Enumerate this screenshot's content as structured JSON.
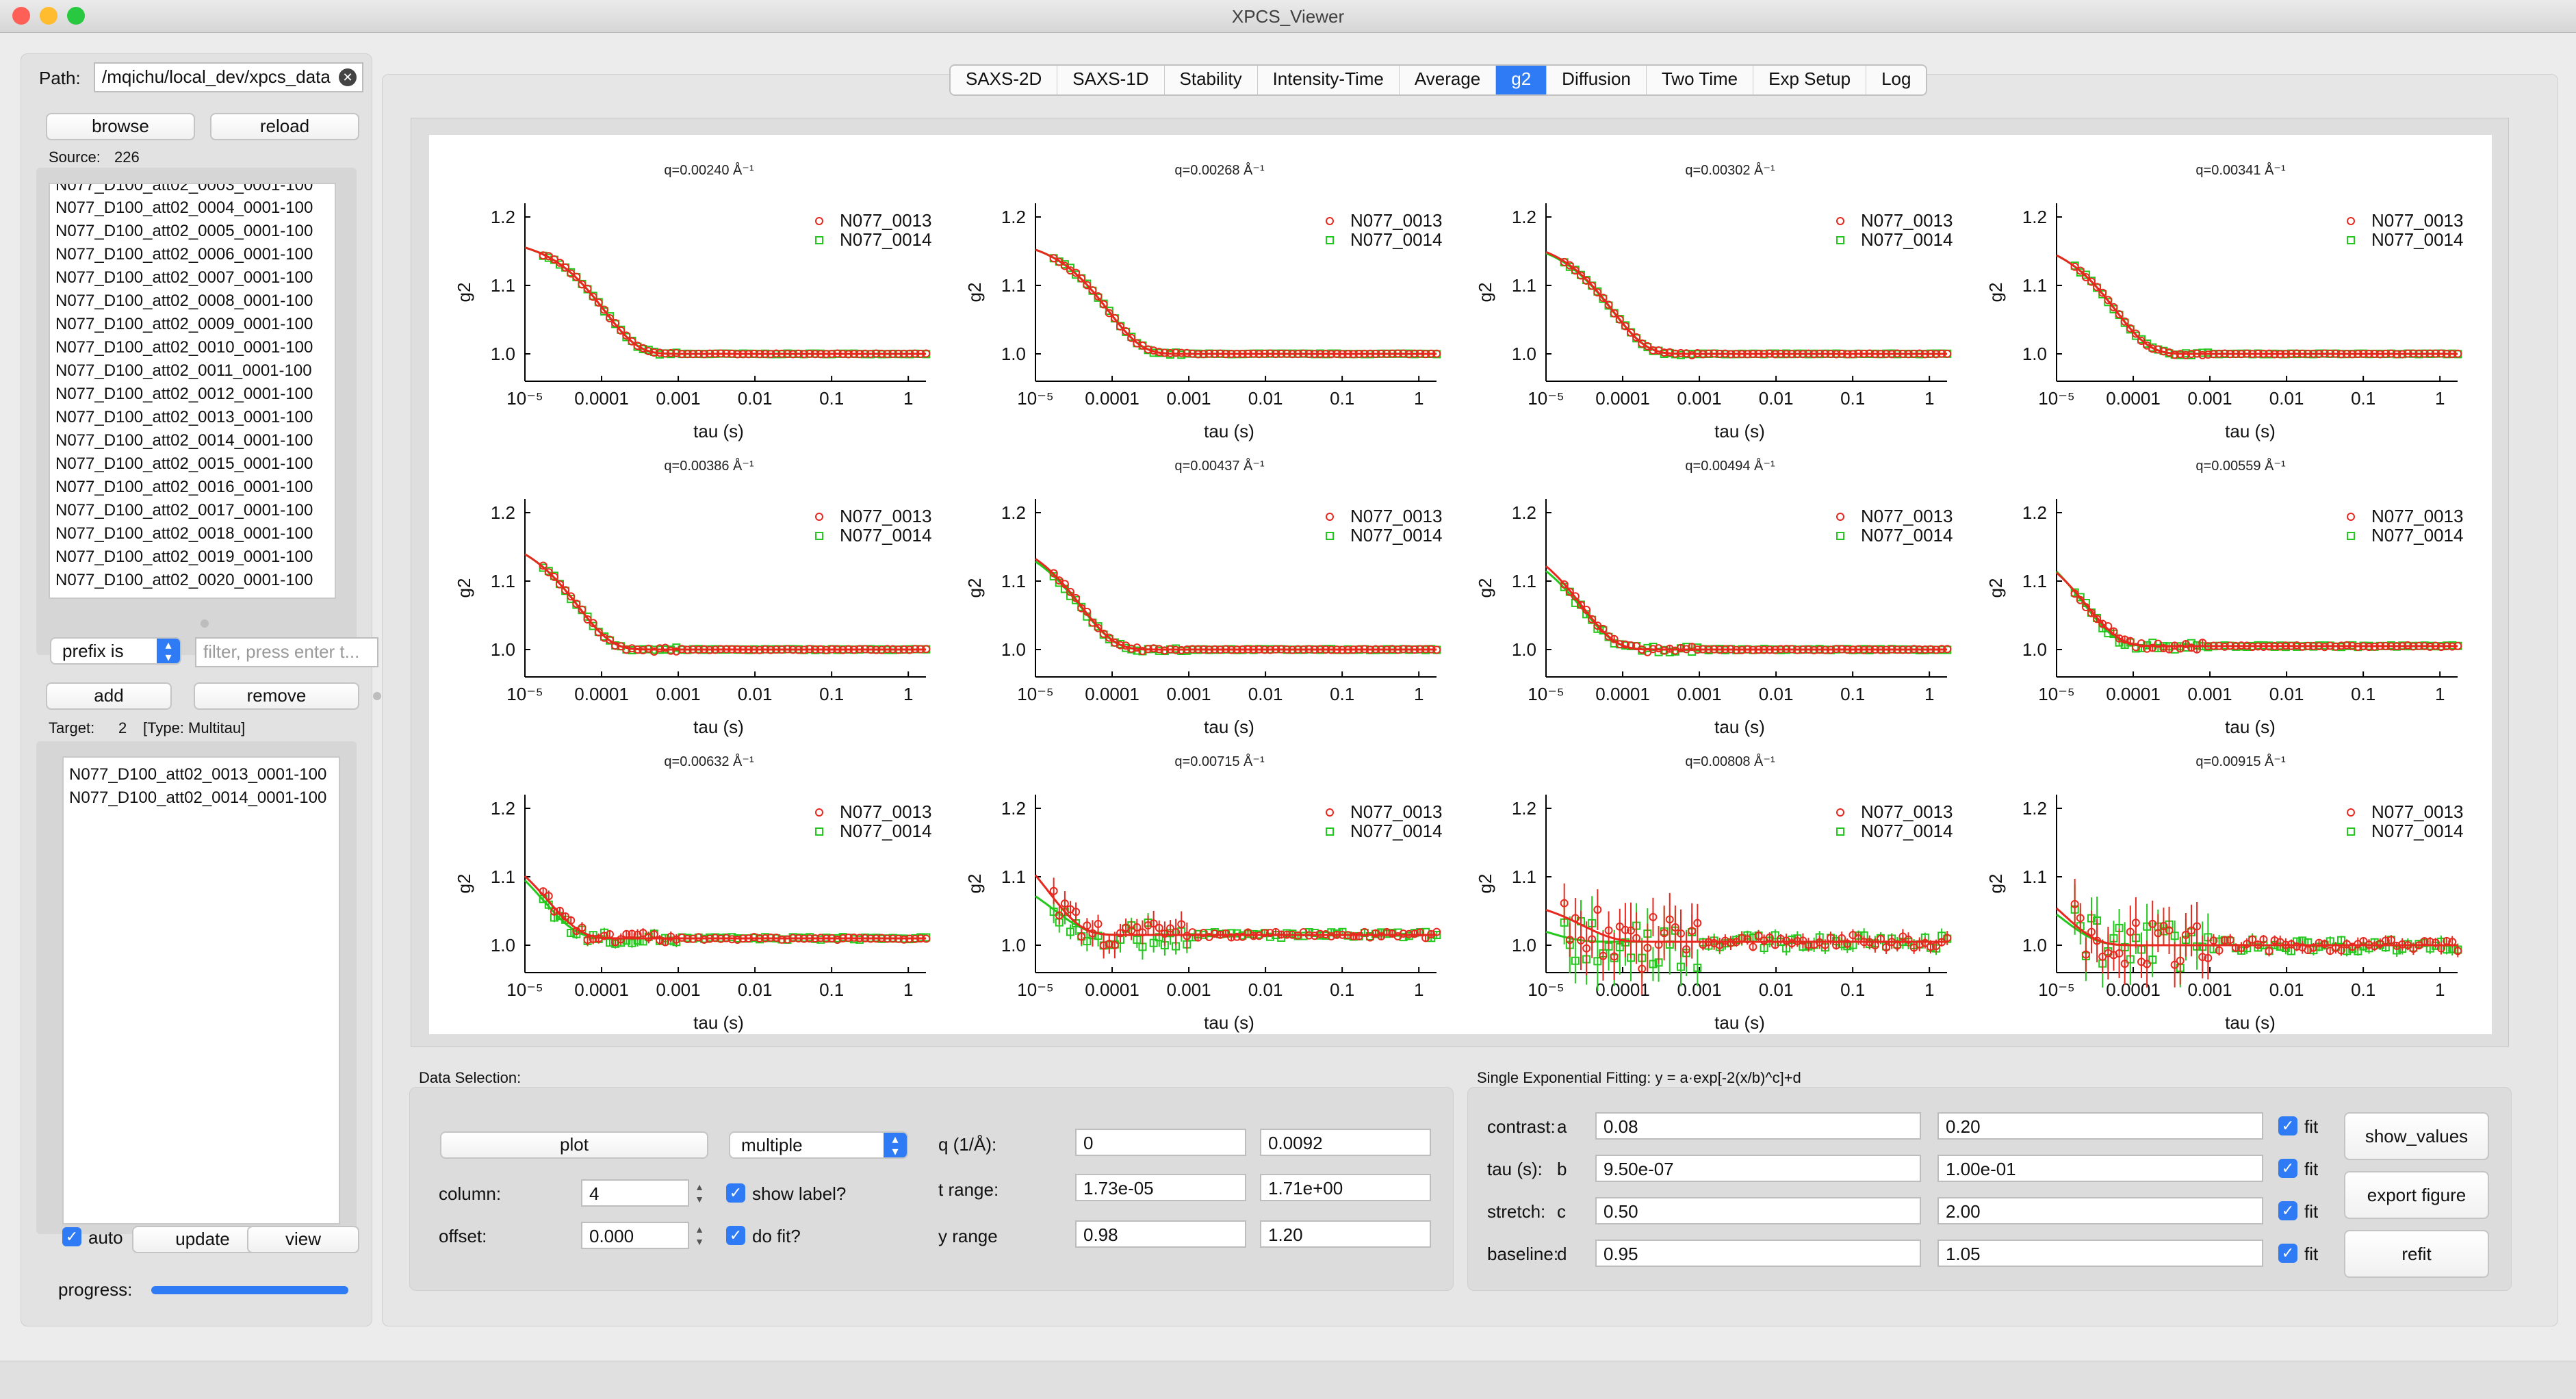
{
  "window": {
    "title": "XPCS_Viewer"
  },
  "left": {
    "path_label": "Path:",
    "path_value": "/mqichu/local_dev/xpcs_data",
    "browse": "browse",
    "reload": "reload",
    "source_label": "Source:",
    "source_count": "226",
    "source_items": [
      "N077_D100_att02_0003_0001-100",
      "N077_D100_att02_0004_0001-100",
      "N077_D100_att02_0005_0001-100",
      "N077_D100_att02_0006_0001-100",
      "N077_D100_att02_0007_0001-100",
      "N077_D100_att02_0008_0001-100",
      "N077_D100_att02_0009_0001-100",
      "N077_D100_att02_0010_0001-100",
      "N077_D100_att02_0011_0001-100",
      "N077_D100_att02_0012_0001-100",
      "N077_D100_att02_0013_0001-100",
      "N077_D100_att02_0014_0001-100",
      "N077_D100_att02_0015_0001-100",
      "N077_D100_att02_0016_0001-100",
      "N077_D100_att02_0017_0001-100",
      "N077_D100_att02_0018_0001-100",
      "N077_D100_att02_0019_0001-100",
      "N077_D100_att02_0020_0001-100"
    ],
    "prefix_option": "prefix is",
    "filter_placeholder": "filter, press enter t...",
    "add": "add",
    "remove": "remove",
    "target_label": "Target:",
    "target_count": "2",
    "target_type": "[Type: Multitau]",
    "target_items": [
      "N077_D100_att02_0013_0001-100",
      "N077_D100_att02_0014_0001-100"
    ],
    "auto_label": "auto",
    "update": "update",
    "view": "view",
    "progress_label": "progress:",
    "progress_value": 1.0
  },
  "tabs": [
    "SAXS-2D",
    "SAXS-1D",
    "Stability",
    "Intensity-Time",
    "Average",
    "g2",
    "Diffusion",
    "Two Time",
    "Exp Setup",
    "Log"
  ],
  "active_tab": "g2",
  "data_selection": {
    "title": "Data Selection:",
    "plot": "plot",
    "mode": "multiple",
    "column_label": "column:",
    "column_value": "4",
    "offset_label": "offset:",
    "offset_value": "0.000",
    "show_label": "show label?",
    "do_fit": "do fit?",
    "q_label": "q (1/Å):",
    "q_min": "0",
    "q_max": "0.0092",
    "t_label": "t range:",
    "t_min": "1.73e-05",
    "t_max": "1.71e+00",
    "y_label": "y range",
    "y_min": "0.98",
    "y_max": "1.20"
  },
  "fitting": {
    "title": "Single Exponential Fitting: y = a·exp[-2(x/b)^c]+d",
    "rows": [
      {
        "label": "contrast:",
        "var": "a",
        "min": "0.08",
        "max": "0.20",
        "fit": "fit"
      },
      {
        "label": "tau (s):",
        "var": "b",
        "min": "9.50e-07",
        "max": "1.00e-01",
        "fit": "fit"
      },
      {
        "label": "stretch:",
        "var": "c",
        "min": "0.50",
        "max": "2.00",
        "fit": "fit"
      },
      {
        "label": "baseline:",
        "var": "d",
        "min": "0.95",
        "max": "1.05",
        "fit": "fit"
      }
    ],
    "show_values": "show_values",
    "export_figure": "export figure",
    "refit": "refit"
  },
  "chart_data": {
    "type": "scatter",
    "x_scale": "log",
    "xlabel": "tau (s)",
    "ylabel": "g2",
    "xlim": [
      1e-05,
      1.7
    ],
    "ylim": [
      0.96,
      1.22
    ],
    "x_tick_labels": [
      "10⁻⁵",
      "0.0001",
      "0.001",
      "0.01",
      "0.1",
      "1"
    ],
    "x_tick_values": [
      1e-05,
      0.0001,
      0.001,
      0.01,
      0.1,
      1
    ],
    "y_tick_labels": [
      "1.0",
      "1.1",
      "1.2"
    ],
    "y_tick_values": [
      1.0,
      1.1,
      1.2
    ],
    "series_names": [
      "N077_0013",
      "N077_0014"
    ],
    "colors": {
      "N077_0013": "#e8281e",
      "N077_0014": "#22c81c"
    },
    "panels": [
      {
        "title": "q=0.00240 Å⁻¹",
        "fits": [
          {
            "a": 0.17,
            "b": 0.00022,
            "c": 1.0,
            "d": 1.0
          },
          {
            "a": 0.17,
            "b": 0.00022,
            "c": 1.0,
            "d": 1.0
          }
        ],
        "noise": 0.002
      },
      {
        "title": "q=0.00268 Å⁻¹",
        "fits": [
          {
            "a": 0.17,
            "b": 0.00018,
            "c": 1.0,
            "d": 1.0
          },
          {
            "a": 0.17,
            "b": 0.00018,
            "c": 1.0,
            "d": 1.0
          }
        ],
        "noise": 0.002
      },
      {
        "title": "q=0.00302 Å⁻¹",
        "fits": [
          {
            "a": 0.17,
            "b": 0.00015,
            "c": 1.0,
            "d": 1.0
          },
          {
            "a": 0.168,
            "b": 0.00015,
            "c": 1.0,
            "d": 1.0
          }
        ],
        "noise": 0.002
      },
      {
        "title": "q=0.00341 Å⁻¹",
        "fits": [
          {
            "a": 0.17,
            "b": 0.00012,
            "c": 1.0,
            "d": 1.0
          },
          {
            "a": 0.17,
            "b": 0.00012,
            "c": 1.0,
            "d": 1.0
          }
        ],
        "noise": 0.002
      },
      {
        "title": "q=0.00386 Å⁻¹",
        "fits": [
          {
            "a": 0.17,
            "b": 0.0001,
            "c": 1.0,
            "d": 1.0
          },
          {
            "a": 0.17,
            "b": 0.0001,
            "c": 1.0,
            "d": 1.0
          }
        ],
        "noise": 0.003
      },
      {
        "title": "q=0.00437 Å⁻¹",
        "fits": [
          {
            "a": 0.17,
            "b": 8e-05,
            "c": 1.0,
            "d": 1.0
          },
          {
            "a": 0.165,
            "b": 8e-05,
            "c": 1.0,
            "d": 1.0
          }
        ],
        "noise": 0.003
      },
      {
        "title": "q=0.00494 Å⁻¹",
        "fits": [
          {
            "a": 0.17,
            "b": 6e-05,
            "c": 1.0,
            "d": 1.0
          },
          {
            "a": 0.16,
            "b": 6e-05,
            "c": 1.0,
            "d": 1.0
          }
        ],
        "noise": 0.004
      },
      {
        "title": "q=0.00559 Å⁻¹",
        "fits": [
          {
            "a": 0.16,
            "b": 5e-05,
            "c": 1.0,
            "d": 1.005
          },
          {
            "a": 0.17,
            "b": 4.5e-05,
            "c": 1.0,
            "d": 1.005
          }
        ],
        "noise": 0.005
      },
      {
        "title": "q=0.00632 Å⁻¹",
        "fits": [
          {
            "a": 0.15,
            "b": 4e-05,
            "c": 1.0,
            "d": 1.01
          },
          {
            "a": 0.15,
            "b": 3.5e-05,
            "c": 1.0,
            "d": 1.01
          }
        ],
        "noise": 0.008
      },
      {
        "title": "q=0.00715 Å⁻¹",
        "fits": [
          {
            "a": 0.17,
            "b": 3e-05,
            "c": 1.0,
            "d": 1.015
          },
          {
            "a": 0.1,
            "b": 3.5e-05,
            "c": 1.0,
            "d": 1.015
          }
        ],
        "noise": 0.018
      },
      {
        "title": "q=0.00808 Å⁻¹",
        "fits": [
          {
            "a": 0.065,
            "b": 6e-05,
            "c": 1.0,
            "d": 1.005
          },
          {
            "a": 0.04,
            "b": 2e-05,
            "c": 1.0,
            "d": 1.005
          }
        ],
        "noise": 0.04
      },
      {
        "title": "q=0.00915 Å⁻¹",
        "fits": [
          {
            "a": 0.12,
            "b": 2.5e-05,
            "c": 1.0,
            "d": 1.0
          },
          {
            "a": 0.1,
            "b": 2.5e-05,
            "c": 1.0,
            "d": 1.0
          }
        ],
        "noise": 0.035
      }
    ]
  }
}
